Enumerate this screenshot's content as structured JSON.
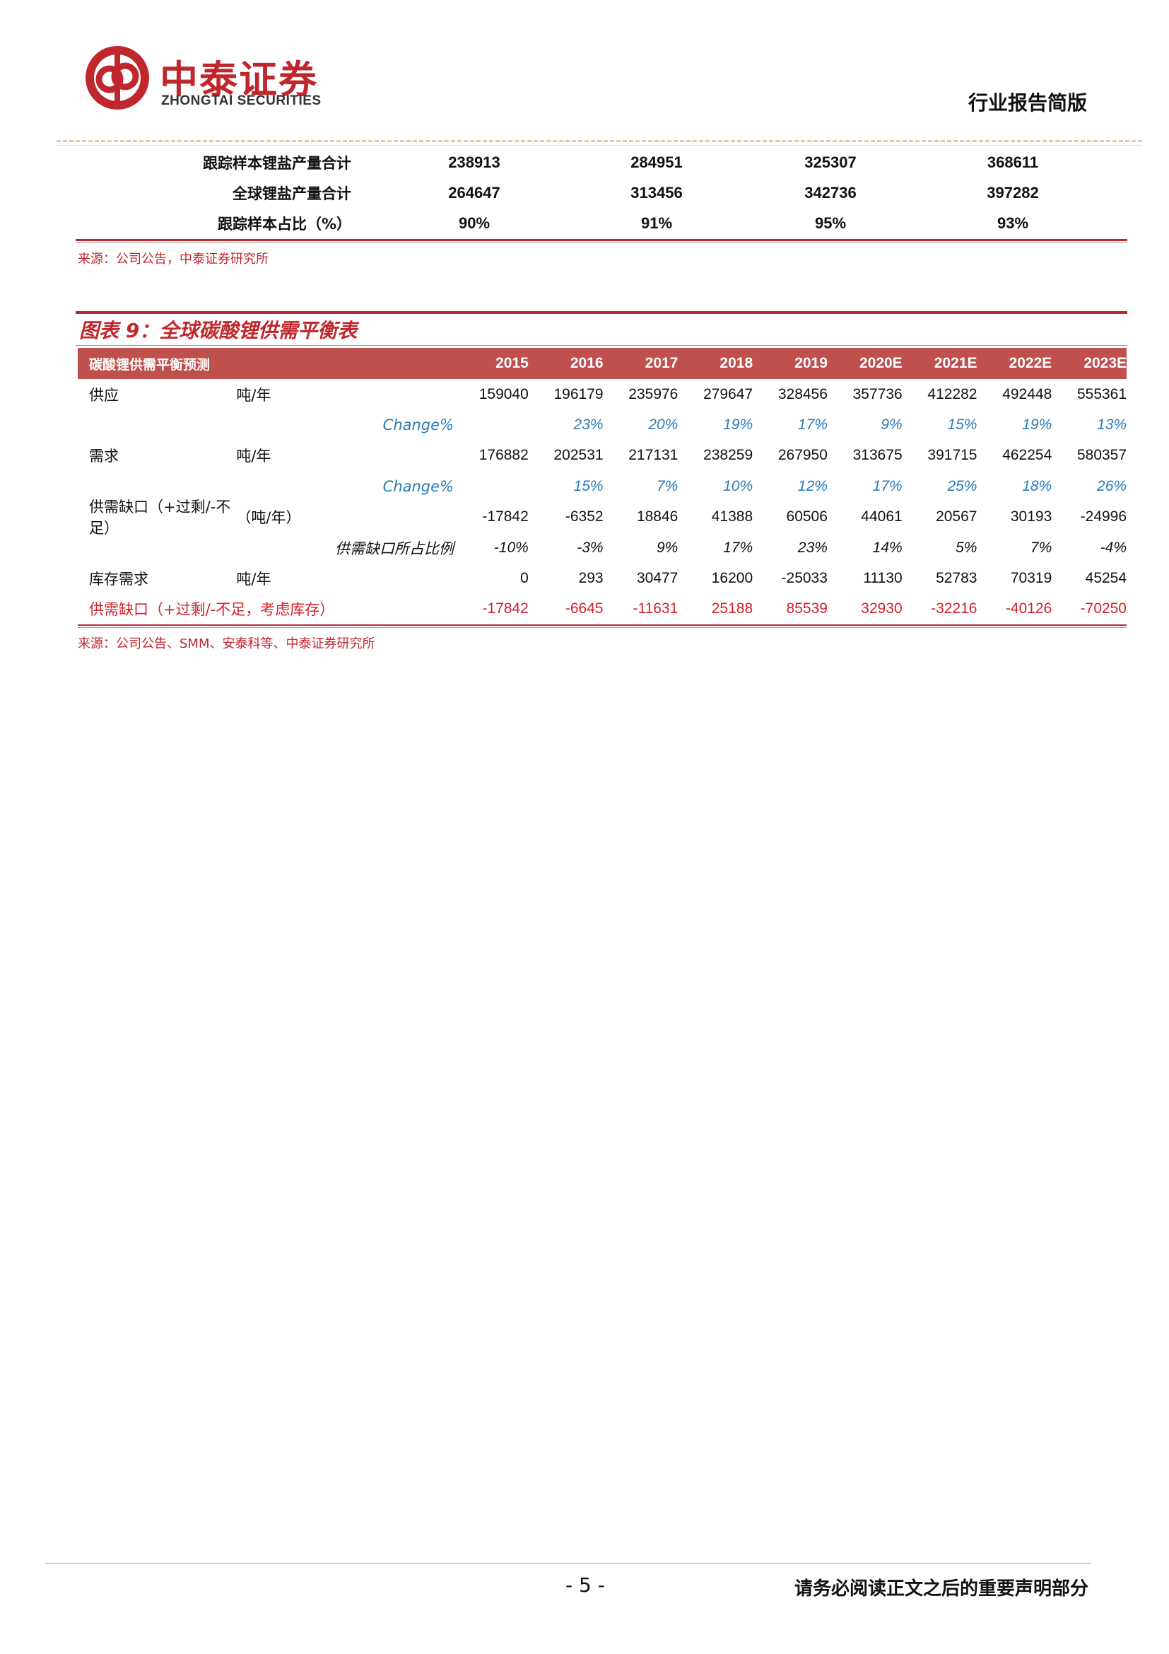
{
  "header": {
    "logo_cn": "中泰证券",
    "logo_en": "ZHONGTAI SECURITIES",
    "report_type": "行业报告简版"
  },
  "table_top": {
    "rows": [
      {
        "label": "跟踪样本锂盐产量合计",
        "values": [
          "238913",
          "284951",
          "325307",
          "368611"
        ]
      },
      {
        "label": "全球锂盐产量合计",
        "values": [
          "264647",
          "313456",
          "342736",
          "397282"
        ]
      },
      {
        "label": "跟踪样本占比（%）",
        "values": [
          "90%",
          "91%",
          "95%",
          "93%"
        ]
      }
    ],
    "source": "来源：公司公告，中泰证券研究所"
  },
  "figure": {
    "title": "图表 9：全球碳酸锂供需平衡表",
    "header_label": "碳酸锂供需平衡预测",
    "years": [
      "2015",
      "2016",
      "2017",
      "2018",
      "2019",
      "2020E",
      "2021E",
      "2022E",
      "2023E"
    ],
    "rows": [
      {
        "name": "供应",
        "unit": "吨/年",
        "values": [
          "159040",
          "196179",
          "235976",
          "279647",
          "328456",
          "357736",
          "412282",
          "492448",
          "555361"
        ]
      },
      {
        "name": "",
        "unit": "Change%",
        "values": [
          "",
          "23%",
          "20%",
          "19%",
          "17%",
          "9%",
          "15%",
          "19%",
          "13%"
        ]
      },
      {
        "name": "需求",
        "unit": "吨/年",
        "values": [
          "176882",
          "202531",
          "217131",
          "238259",
          "267950",
          "313675",
          "391715",
          "462254",
          "580357"
        ]
      },
      {
        "name": "",
        "unit": "Change%",
        "values": [
          "",
          "15%",
          "7%",
          "10%",
          "12%",
          "17%",
          "25%",
          "18%",
          "26%"
        ]
      },
      {
        "name": "供需缺口（+过剩/-不足）",
        "unit": "（吨/年）",
        "values": [
          "-17842",
          "-6352",
          "18846",
          "41388",
          "60506",
          "44061",
          "20567",
          "30193",
          "-24996"
        ]
      },
      {
        "name": "",
        "unit": "供需缺口所占比例",
        "values": [
          "-10%",
          "-3%",
          "9%",
          "17%",
          "23%",
          "14%",
          "5%",
          "7%",
          "-4%"
        ]
      },
      {
        "name": "库存需求",
        "unit": "吨/年",
        "values": [
          "0",
          "293",
          "30477",
          "16200",
          "-25033",
          "11130",
          "52783",
          "70319",
          "45254"
        ]
      },
      {
        "name": "供需缺口（+过剩/-不足，考虑库存）",
        "unit": "",
        "values": [
          "-17842",
          "-6645",
          "-11631",
          "25188",
          "85539",
          "32930",
          "-32216",
          "-40126",
          "-70250"
        ]
      }
    ],
    "source": "来源：公司公告、SMM、安泰科等、中泰证券研究所"
  },
  "footer": {
    "page_number": "- 5 -",
    "disclaimer": "请务必阅读正文之后的重要声明部分"
  }
}
